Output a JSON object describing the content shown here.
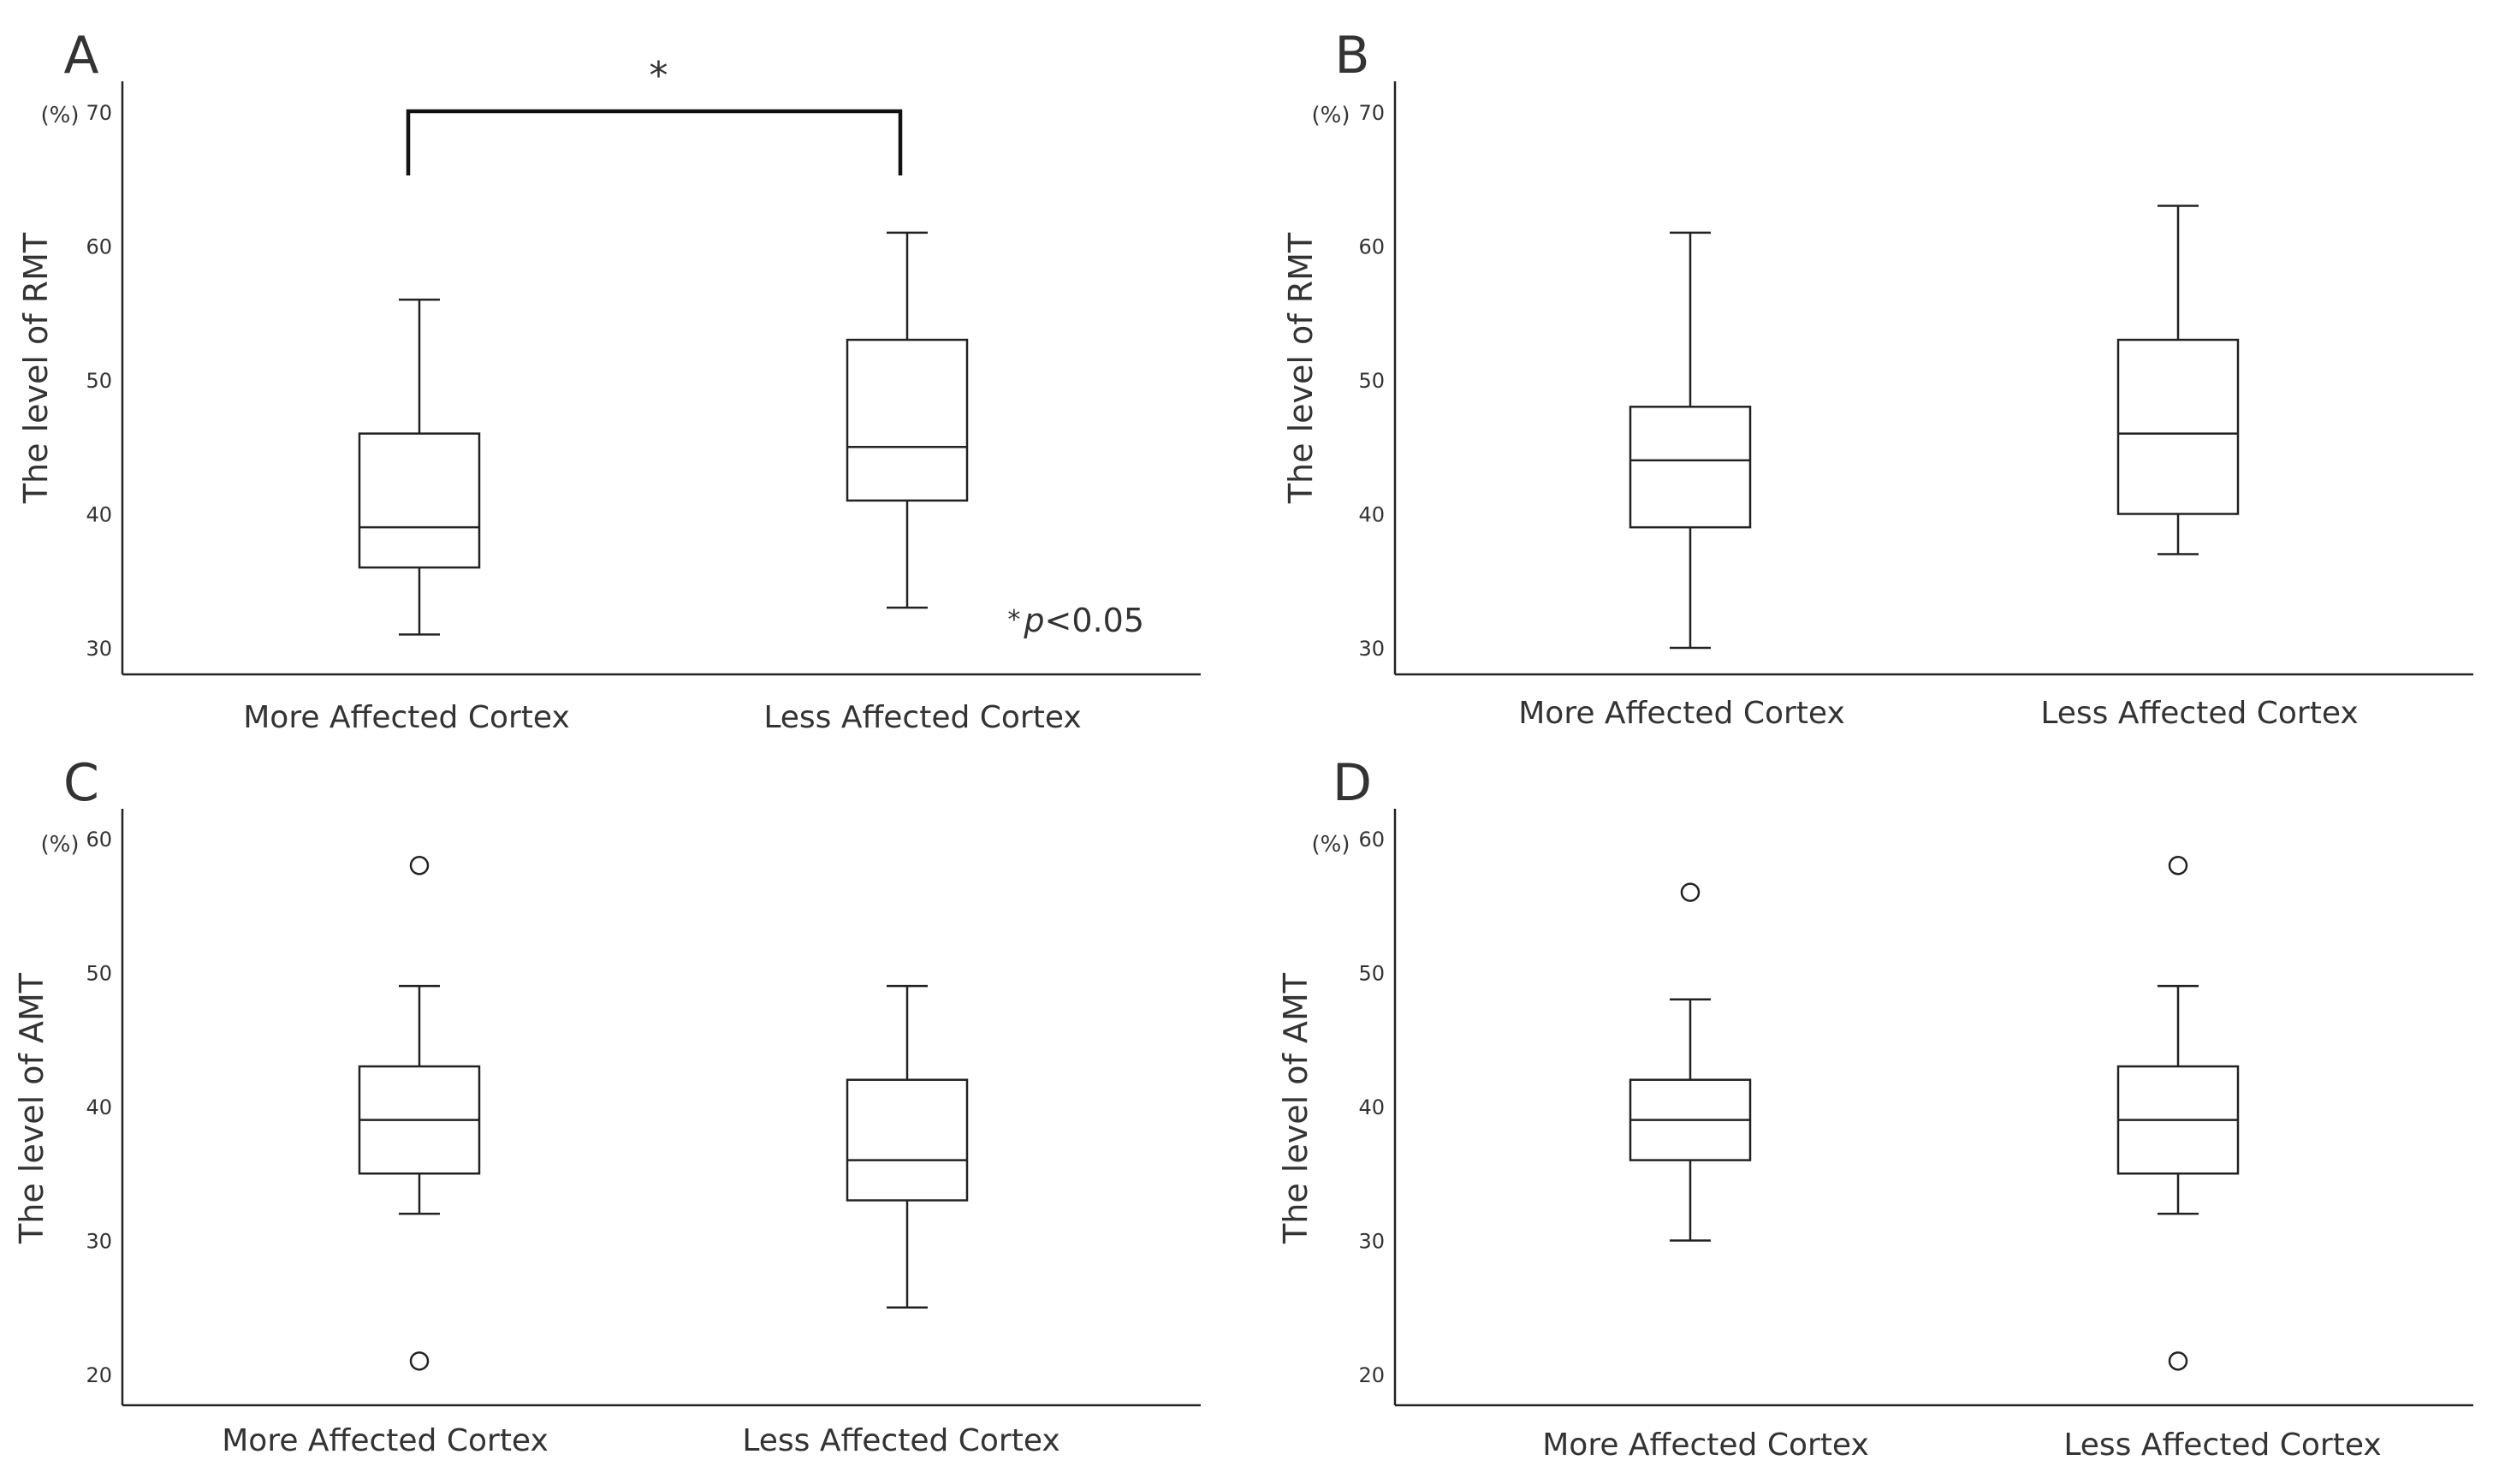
{
  "chart_data": [
    {
      "panel": "A",
      "type": "box",
      "ylabel": "The level of RMT",
      "unit": "(%)",
      "ylim": [
        28,
        71
      ],
      "yticks": [
        30,
        40,
        50,
        60,
        70
      ],
      "categories": [
        "More Affected Cortex",
        "Less Affected Cortex"
      ],
      "boxes": [
        {
          "name": "More Affected Cortex",
          "whisker_low": 31,
          "q1": 36,
          "median": 39,
          "q3": 46,
          "whisker_high": 56,
          "outliers": []
        },
        {
          "name": "Less Affected Cortex",
          "whisker_low": 33,
          "q1": 41,
          "median": 45,
          "q3": 53,
          "whisker_high": 61,
          "outliers": []
        }
      ],
      "significance": {
        "between": [
          0,
          1
        ],
        "marker": "*"
      },
      "annotation": {
        "star": "*",
        "p": "p",
        "rest": "<0.05"
      }
    },
    {
      "panel": "B",
      "type": "box",
      "ylabel": "The level of RMT",
      "unit": "(%)",
      "ylim": [
        28,
        71
      ],
      "yticks": [
        30,
        40,
        50,
        60,
        70
      ],
      "categories": [
        "More Affected Cortex",
        "Less Affected Cortex"
      ],
      "boxes": [
        {
          "name": "More Affected Cortex",
          "whisker_low": 30,
          "q1": 39,
          "median": 44,
          "q3": 48,
          "whisker_high": 61,
          "outliers": []
        },
        {
          "name": "Less Affected Cortex",
          "whisker_low": 37,
          "q1": 40,
          "median": 46,
          "q3": 53,
          "whisker_high": 63,
          "outliers": []
        }
      ]
    },
    {
      "panel": "C",
      "type": "box",
      "ylabel": "The level of AMT",
      "unit": "(%)",
      "ylim": [
        18,
        62
      ],
      "yticks": [
        20,
        30,
        40,
        50,
        60
      ],
      "categories": [
        "More Affected Cortex",
        "Less Affected Cortex"
      ],
      "boxes": [
        {
          "name": "More Affected Cortex",
          "whisker_low": 32,
          "q1": 35,
          "median": 39,
          "q3": 43,
          "whisker_high": 49,
          "outliers": [
            58,
            21
          ]
        },
        {
          "name": "Less Affected Cortex",
          "whisker_low": 25,
          "q1": 33,
          "median": 36,
          "q3": 42,
          "whisker_high": 49,
          "outliers": []
        }
      ]
    },
    {
      "panel": "D",
      "type": "box",
      "ylabel": "The level of AMT",
      "unit": "(%)",
      "ylim": [
        18,
        62
      ],
      "yticks": [
        20,
        30,
        40,
        50,
        60
      ],
      "categories": [
        "More Affected Cortex",
        "Less Affected Cortex"
      ],
      "boxes": [
        {
          "name": "More Affected Cortex",
          "whisker_low": 30,
          "q1": 36,
          "median": 39,
          "q3": 42,
          "whisker_high": 48,
          "outliers": [
            56
          ]
        },
        {
          "name": "Less Affected Cortex",
          "whisker_low": 32,
          "q1": 35,
          "median": 39,
          "q3": 43,
          "whisker_high": 49,
          "outliers": [
            58,
            21
          ]
        }
      ]
    }
  ]
}
